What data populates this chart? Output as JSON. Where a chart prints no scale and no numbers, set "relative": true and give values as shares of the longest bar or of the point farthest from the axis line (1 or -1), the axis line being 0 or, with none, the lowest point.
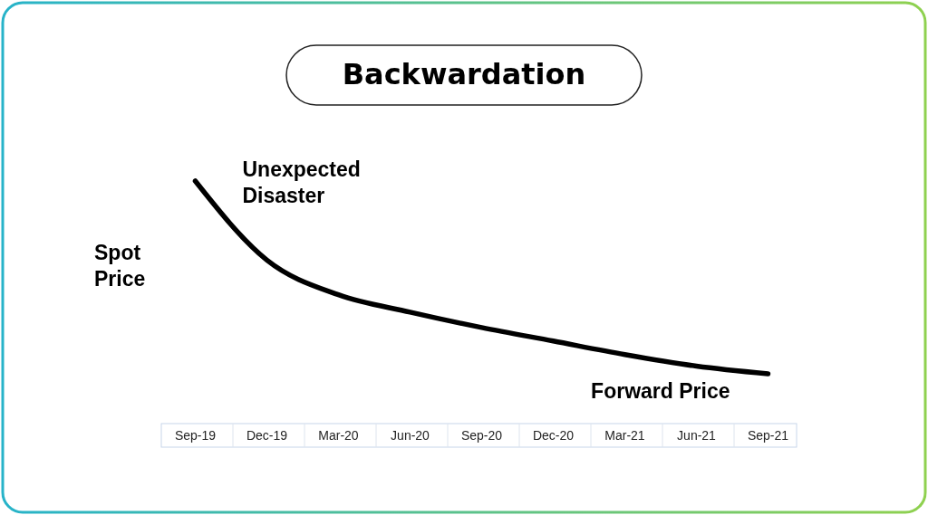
{
  "chart_data": {
    "type": "line",
    "title": "Backwardation",
    "relative": true,
    "categories": [
      "Sep-19",
      "Dec-19",
      "Mar-20",
      "Jun-20",
      "Sep-20",
      "Dec-20",
      "Mar-21",
      "Jun-21",
      "Sep-21"
    ],
    "series": [
      {
        "color": "#000000",
        "values": [
          1,
          0.59,
          0.41,
          0.32,
          0.24,
          0.17,
          0.1,
          0.04,
          0
        ]
      }
    ],
    "annotations": [
      "Spot Price",
      {
        "text": "Unexpected Disaster",
        "x": "Sep-19",
        "y": 1
      },
      {
        "text": "Forward Price",
        "x": "Sep-21",
        "y": 0
      }
    ],
    "marker": "none",
    "line_style": "solid"
  }
}
